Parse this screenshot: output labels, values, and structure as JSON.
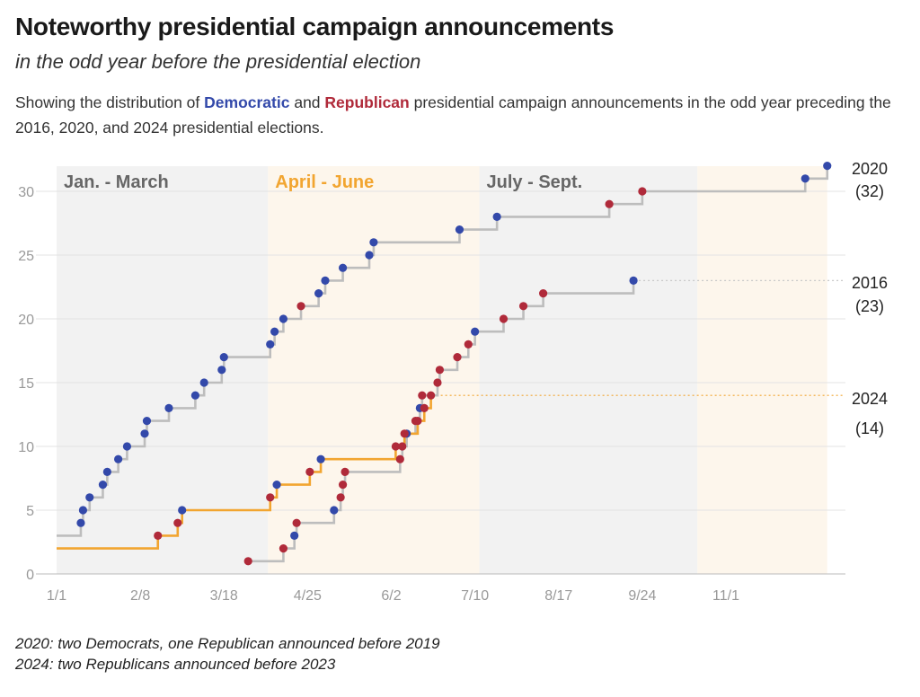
{
  "title": "Noteworthy presidential campaign announcements",
  "subtitle": "in the odd year before the presidential election",
  "description": {
    "before": "Showing the distribution of ",
    "dem": "Democratic",
    "mid": " and ",
    "rep": "Republican",
    "after": " presidential campaign announcements in the odd year preceding the 2016, 2020, and 2024 presidential elections."
  },
  "notes": [
    "2020: two Democrats, one Republican announced before 2019",
    "2024: two Republicans announced before 2023"
  ],
  "colors": {
    "democratic": "#3349aa",
    "republican": "#b02a3a",
    "line_2024": "#f2a530",
    "line_other": "#bdbdbd",
    "band_gray": "#f2f2f2",
    "band_orange": "#fdf6ec",
    "label_gray": "#666666",
    "label_orange": "#f2a530"
  },
  "chart_data": {
    "type": "line",
    "step": "after",
    "x_unit": "day of odd year (1 = Jan 1)",
    "xlim": [
      1,
      356
    ],
    "ylim": [
      0,
      32
    ],
    "grid": true,
    "legend": "none",
    "xticks": [
      {
        "x": 1,
        "label": "1/1"
      },
      {
        "x": 39,
        "label": "2/8"
      },
      {
        "x": 77,
        "label": "3/18"
      },
      {
        "x": 115,
        "label": "4/25"
      },
      {
        "x": 153,
        "label": "6/2"
      },
      {
        "x": 191,
        "label": "7/10"
      },
      {
        "x": 229,
        "label": "8/17"
      },
      {
        "x": 267,
        "label": "9/24"
      },
      {
        "x": 305,
        "label": "11/1"
      }
    ],
    "yticks": [
      0,
      5,
      10,
      15,
      20,
      25,
      30
    ],
    "quarters": [
      {
        "label": "Jan. - March",
        "start": 1,
        "end": 97,
        "style": "gray"
      },
      {
        "label": "April - June",
        "start": 97,
        "end": 193,
        "style": "orange"
      },
      {
        "label": "July - Sept.",
        "start": 193,
        "end": 292,
        "style": "gray"
      },
      {
        "label": "",
        "start": 292,
        "end": 351,
        "style": "orange"
      }
    ],
    "series": [
      {
        "name": "2020",
        "end_label": "2020",
        "end_value_label": "(32)",
        "start_value": 3,
        "end_x": 351,
        "style": "gray",
        "points": [
          {
            "x": 12,
            "y": 4,
            "party": "D"
          },
          {
            "x": 13,
            "y": 5,
            "party": "D"
          },
          {
            "x": 16,
            "y": 6,
            "party": "D"
          },
          {
            "x": 22,
            "y": 7,
            "party": "D"
          },
          {
            "x": 24,
            "y": 8,
            "party": "D"
          },
          {
            "x": 29,
            "y": 9,
            "party": "D"
          },
          {
            "x": 33,
            "y": 10,
            "party": "D"
          },
          {
            "x": 41,
            "y": 11,
            "party": "D"
          },
          {
            "x": 42,
            "y": 12,
            "party": "D"
          },
          {
            "x": 52,
            "y": 13,
            "party": "D"
          },
          {
            "x": 64,
            "y": 14,
            "party": "D"
          },
          {
            "x": 68,
            "y": 15,
            "party": "D"
          },
          {
            "x": 76,
            "y": 16,
            "party": "D"
          },
          {
            "x": 77,
            "y": 17,
            "party": "D"
          },
          {
            "x": 98,
            "y": 18,
            "party": "D"
          },
          {
            "x": 100,
            "y": 19,
            "party": "D"
          },
          {
            "x": 104,
            "y": 20,
            "party": "D"
          },
          {
            "x": 112,
            "y": 21,
            "party": "R"
          },
          {
            "x": 120,
            "y": 22,
            "party": "D"
          },
          {
            "x": 123,
            "y": 23,
            "party": "D"
          },
          {
            "x": 131,
            "y": 24,
            "party": "D"
          },
          {
            "x": 143,
            "y": 25,
            "party": "D"
          },
          {
            "x": 145,
            "y": 26,
            "party": "D"
          },
          {
            "x": 184,
            "y": 27,
            "party": "D"
          },
          {
            "x": 201,
            "y": 28,
            "party": "D"
          },
          {
            "x": 252,
            "y": 29,
            "party": "R"
          },
          {
            "x": 267,
            "y": 30,
            "party": "R"
          },
          {
            "x": 341,
            "y": 31,
            "party": "D"
          },
          {
            "x": 351,
            "y": 32,
            "party": "D"
          }
        ]
      },
      {
        "name": "2016",
        "end_label": "2016",
        "end_value_label": "(23)",
        "start_value": 1,
        "end_x": 263,
        "style": "gray",
        "points": [
          {
            "x": 88,
            "y": 1,
            "party": "R"
          },
          {
            "x": 104,
            "y": 2,
            "party": "R"
          },
          {
            "x": 109,
            "y": 3,
            "party": "D"
          },
          {
            "x": 110,
            "y": 4,
            "party": "R"
          },
          {
            "x": 127,
            "y": 5,
            "party": "D"
          },
          {
            "x": 130,
            "y": 6,
            "party": "R"
          },
          {
            "x": 131,
            "y": 7,
            "party": "R"
          },
          {
            "x": 132,
            "y": 8,
            "party": "R"
          },
          {
            "x": 157,
            "y": 9,
            "party": "R"
          },
          {
            "x": 158,
            "y": 10,
            "party": "R"
          },
          {
            "x": 160,
            "y": 11,
            "party": "D"
          },
          {
            "x": 164,
            "y": 12,
            "party": "R"
          },
          {
            "x": 166,
            "y": 13,
            "party": "D"
          },
          {
            "x": 167,
            "y": 14,
            "party": "R"
          },
          {
            "x": 174,
            "y": 15,
            "party": "R"
          },
          {
            "x": 175,
            "y": 16,
            "party": "R"
          },
          {
            "x": 183,
            "y": 17,
            "party": "R"
          },
          {
            "x": 188,
            "y": 18,
            "party": "R"
          },
          {
            "x": 191,
            "y": 19,
            "party": "D"
          },
          {
            "x": 204,
            "y": 20,
            "party": "R"
          },
          {
            "x": 213,
            "y": 21,
            "party": "R"
          },
          {
            "x": 222,
            "y": 22,
            "party": "R"
          },
          {
            "x": 263,
            "y": 23,
            "party": "D"
          }
        ]
      },
      {
        "name": "2024",
        "end_label": "2024",
        "end_value_label": "(14)",
        "start_value": 2,
        "end_x": 171,
        "style": "orange",
        "points": [
          {
            "x": 47,
            "y": 3,
            "party": "R"
          },
          {
            "x": 56,
            "y": 4,
            "party": "R"
          },
          {
            "x": 58,
            "y": 5,
            "party": "D"
          },
          {
            "x": 98,
            "y": 6,
            "party": "R"
          },
          {
            "x": 101,
            "y": 7,
            "party": "D"
          },
          {
            "x": 116,
            "y": 8,
            "party": "R"
          },
          {
            "x": 121,
            "y": 9,
            "party": "D"
          },
          {
            "x": 155,
            "y": 10,
            "party": "R"
          },
          {
            "x": 159,
            "y": 11,
            "party": "R"
          },
          {
            "x": 165,
            "y": 12,
            "party": "R"
          },
          {
            "x": 168,
            "y": 13,
            "party": "R"
          },
          {
            "x": 171,
            "y": 14,
            "party": "R"
          }
        ]
      }
    ]
  }
}
